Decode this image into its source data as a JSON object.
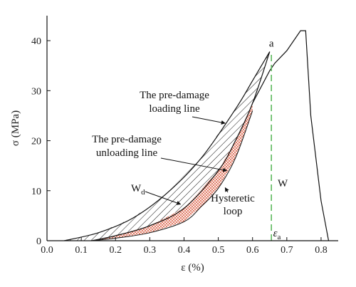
{
  "chart_data": {
    "type": "line",
    "xlabel": "ε (%)",
    "ylabel": "σ (MPa)",
    "xlim": [
      0.0,
      0.85
    ],
    "ylim": [
      0,
      45
    ],
    "x_ticks": [
      0.0,
      0.1,
      0.2,
      0.3,
      0.4,
      0.5,
      0.6,
      0.7,
      0.8
    ],
    "x_tick_labels": [
      "0.0",
      "0.1",
      "0.2",
      "0.3",
      "0.4",
      "0.5",
      "0.6",
      "0.7",
      "0.8"
    ],
    "y_ticks": [
      0,
      10,
      20,
      30,
      40
    ],
    "y_tick_labels": [
      "0",
      "10",
      "20",
      "30",
      "40"
    ],
    "grid": false,
    "series": [
      {
        "role": "pre-damage-loading",
        "x": [
          0.05,
          0.15,
          0.25,
          0.35,
          0.45,
          0.55,
          0.6,
          0.65
        ],
        "y": [
          0,
          1.6,
          4.5,
          9.5,
          16.5,
          26.3,
          32,
          37.8
        ]
      },
      {
        "role": "pre-damage-unloading",
        "x": [
          0.13,
          0.2,
          0.3,
          0.4,
          0.5,
          0.55,
          0.6,
          0.65
        ],
        "y": [
          0,
          1.0,
          3.0,
          6.5,
          14.0,
          20.0,
          27.5,
          37.8
        ]
      },
      {
        "role": "hysteretic-lower-boundary",
        "x": [
          0.13,
          0.2,
          0.3,
          0.4,
          0.45,
          0.5,
          0.55,
          0.6
        ],
        "y": [
          0,
          0.5,
          1.6,
          3.8,
          6.8,
          10.5,
          16.5,
          26.0
        ]
      },
      {
        "role": "reloading-to-failure",
        "x": [
          0.6,
          0.65,
          0.655,
          0.665,
          0.7,
          0.74,
          0.755,
          0.77,
          0.8,
          0.822
        ],
        "y": [
          27.5,
          34.0,
          34.5,
          35.5,
          38.0,
          42.0,
          42.0,
          25.0,
          8.0,
          0
        ]
      }
    ],
    "marker_line": {
      "x": 0.655,
      "y_range": [
        0,
        37.8
      ],
      "style": "dashed",
      "color": "#5cb85c"
    },
    "annotations": {
      "point_a": "a",
      "loading_line_1": "The pre-damage",
      "loading_line_2": "loading line",
      "unloading_line_1": "The pre-damage",
      "unloading_line_2": "unloading line",
      "wd": "W",
      "wd_sub": "d",
      "hysteretic_1": "Hysteretic",
      "hysteretic_2": "loop",
      "w": "W",
      "eps_a": "ε",
      "eps_a_sub": "a"
    },
    "colors": {
      "curve": "#111111",
      "hysteretic_fill": "#d9573b",
      "marker": "#5cb85c"
    }
  }
}
